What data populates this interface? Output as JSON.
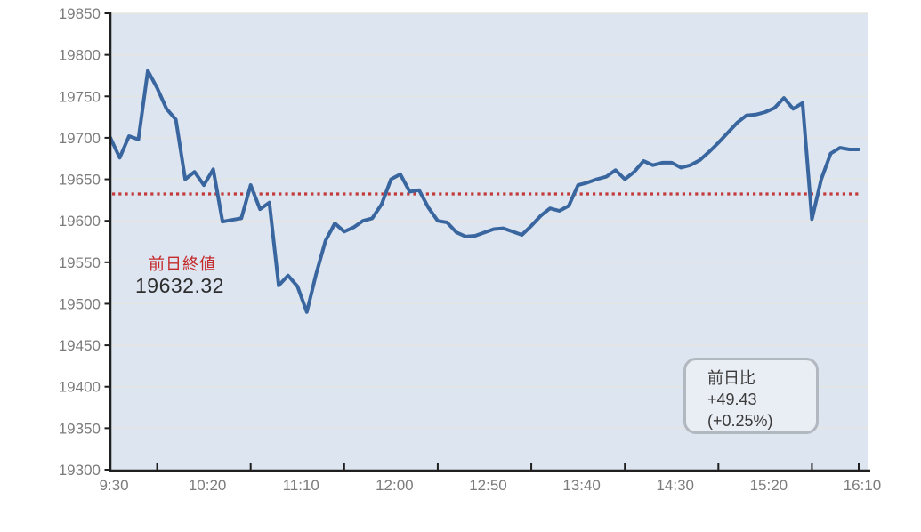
{
  "chart_data": {
    "type": "line",
    "x": [
      "9:30",
      "9:35",
      "9:40",
      "9:45",
      "9:50",
      "9:55",
      "10:00",
      "10:05",
      "10:10",
      "10:15",
      "10:20",
      "10:25",
      "10:30",
      "10:35",
      "10:40",
      "10:45",
      "10:50",
      "10:55",
      "11:00",
      "11:05",
      "11:10",
      "11:15",
      "11:20",
      "11:25",
      "11:30",
      "11:35",
      "11:40",
      "11:45",
      "11:50",
      "11:55",
      "12:00",
      "12:05",
      "12:10",
      "12:15",
      "12:20",
      "12:25",
      "12:30",
      "12:35",
      "12:40",
      "12:45",
      "12:50",
      "12:55",
      "13:00",
      "13:05",
      "13:10",
      "13:15",
      "13:20",
      "13:25",
      "13:30",
      "13:35",
      "13:40",
      "13:45",
      "13:50",
      "13:55",
      "14:00",
      "14:05",
      "14:10",
      "14:15",
      "14:20",
      "14:25",
      "14:30",
      "14:35",
      "14:40",
      "14:45",
      "14:50",
      "14:55",
      "15:00",
      "15:05",
      "15:10",
      "15:15",
      "15:20",
      "15:25",
      "15:30",
      "15:35",
      "15:40",
      "15:45",
      "15:50",
      "15:55",
      "16:00",
      "16:05",
      "16:10"
    ],
    "values": [
      19700,
      19676,
      19702,
      19698,
      19781,
      19760,
      19735,
      19722,
      19650,
      19659,
      19643,
      19662,
      19599,
      19601,
      19603,
      19643,
      19614,
      19622,
      19522,
      19534,
      19521,
      19490,
      19536,
      19576,
      19597,
      19587,
      19592,
      19600,
      19603,
      19620,
      19650,
      19656,
      19635,
      19637,
      19616,
      19600,
      19598,
      19586,
      19581,
      19582,
      19586,
      19590,
      19591,
      19587,
      19583,
      19594,
      19606,
      19615,
      19612,
      19618,
      19643,
      19646,
      19650,
      19653,
      19661,
      19650,
      19659,
      19672,
      19667,
      19670,
      19670,
      19664,
      19667,
      19673,
      19683,
      19694,
      19706,
      19718,
      19727,
      19728,
      19731,
      19736,
      19748,
      19735,
      19742,
      19602,
      19650,
      19681,
      19688,
      19686,
      19686
    ],
    "title": "",
    "xlabel": "",
    "ylabel": "",
    "ylim": [
      19300,
      19850
    ],
    "xlim_minutes": [
      "9:30",
      "16:10"
    ],
    "y_ticks": [
      19300,
      19350,
      19400,
      19450,
      19500,
      19550,
      19600,
      19650,
      19700,
      19750,
      19800,
      19850
    ],
    "x_axis_labels": [
      "9:30",
      "10:20",
      "11:10",
      "12:00",
      "12:50",
      "13:40",
      "14:30",
      "15:20",
      "16:10"
    ],
    "x_minor_ticks": [
      "9:55",
      "10:45",
      "11:35",
      "12:25",
      "13:15",
      "14:05",
      "14:55",
      "15:45",
      "16:10"
    ],
    "grid": "horizontal",
    "legend": "none",
    "prev_close": 19632.32
  },
  "annotations": {
    "prev_close_label": "前日終値",
    "prev_close_value": "19632.32",
    "change_box": {
      "title": "前日比",
      "value": "+49.43",
      "percent": "(+0.25%)"
    }
  },
  "colors": {
    "plot_bg": "#dce5f0",
    "line": "#3a66a0",
    "reference_line": "#c43b3b",
    "grid": "#e5e5e1",
    "axis": "#1f1f1f",
    "tick_label": "#7c7c7c",
    "annotation_red": "#c42a2a",
    "annotation_dark": "#2d2d2d",
    "box_border": "#b2b8c0",
    "box_bg": "#e9edf4"
  }
}
